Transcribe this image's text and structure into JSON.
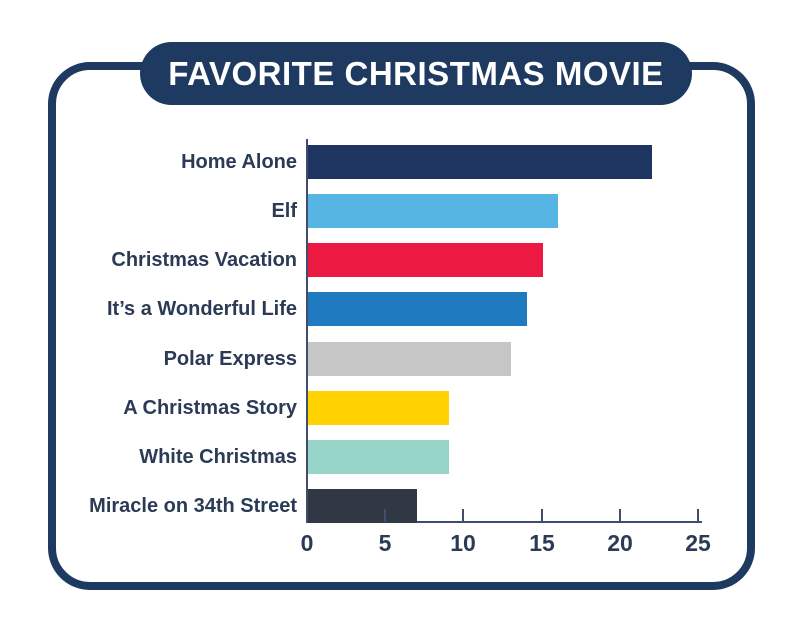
{
  "title": "FAVORITE CHRISTMAS MOVIE",
  "colors": {
    "frame_navy": "#1e3a61",
    "axis": "#3f4e6e",
    "label_text": "#2b3b55",
    "title_text": "#ffffff",
    "background": "#ffffff"
  },
  "chart_data": {
    "type": "bar",
    "orientation": "horizontal",
    "title": "FAVORITE CHRISTMAS MOVIE",
    "categories": [
      "Home Alone",
      "Elf",
      "Christmas Vacation",
      "It’s a Wonderful Life",
      "Polar Express",
      "A Christmas Story",
      "White Christmas",
      "Miracle on 34th Street"
    ],
    "values": [
      22,
      16,
      15,
      14,
      13,
      9,
      9,
      7
    ],
    "bar_colors": [
      "#1d3560",
      "#57b5e3",
      "#ec1a42",
      "#1f7ac0",
      "#c6c6c6",
      "#ffd200",
      "#96d5c8",
      "#303844"
    ],
    "xlim": [
      0,
      25
    ],
    "x_ticks": [
      0,
      5,
      10,
      15,
      20,
      25
    ],
    "xlabel": "",
    "ylabel": "",
    "grid": false,
    "legend": false
  }
}
